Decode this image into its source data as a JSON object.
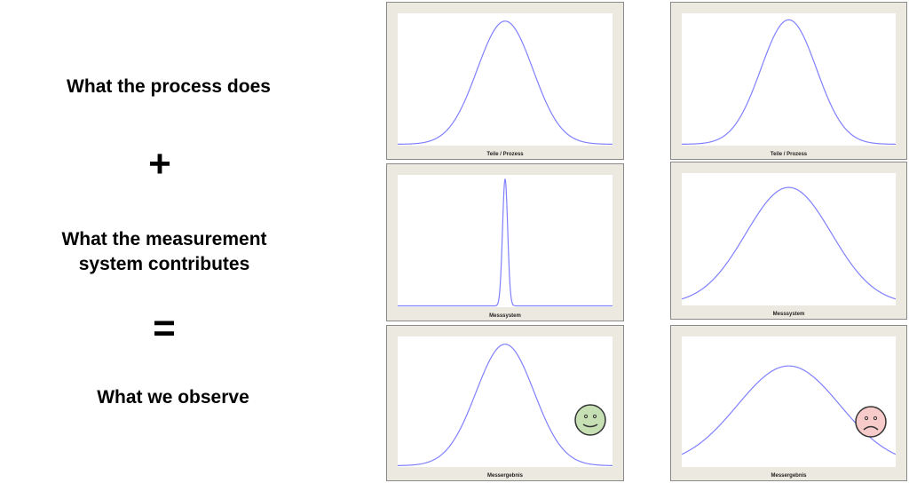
{
  "left_text": {
    "line1": "What the process does",
    "plus": "+",
    "line2a": "What the measurement",
    "line2b": "system contributes",
    "equals": "=",
    "line3": "What we observe"
  },
  "curve_color": "#8080ff",
  "panels": [
    {
      "caption": "Teile / Prozess",
      "spread": 0.13,
      "peak": 0.95
    },
    {
      "caption": "Messsystem",
      "spread": 0.012,
      "peak": 0.98
    },
    {
      "caption": "Messergebnis",
      "spread": 0.135,
      "peak": 0.95,
      "face": "happy",
      "face_color": "#c6e0b4"
    },
    {
      "caption": "Teile / Prozess",
      "spread": 0.13,
      "peak": 0.96
    },
    {
      "caption": "Messsystem",
      "spread": 0.2,
      "peak": 0.9
    },
    {
      "caption": "Messergebnis",
      "spread": 0.24,
      "peak": 0.78,
      "face": "sad",
      "face_color": "#f8cbcb"
    }
  ]
}
